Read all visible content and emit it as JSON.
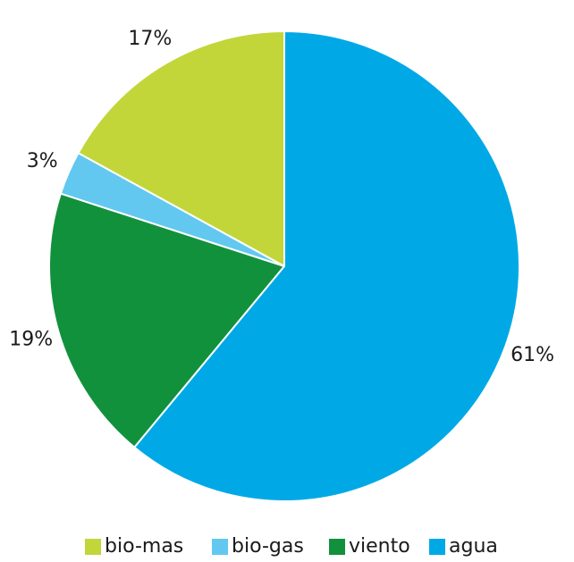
{
  "chart_data": {
    "type": "pie",
    "categories": [
      "bio-mas",
      "bio-gas",
      "viento",
      "agua"
    ],
    "values": [
      17,
      3,
      19,
      61
    ],
    "value_labels": [
      "17%",
      "3%",
      "19%",
      "61%"
    ],
    "colors": [
      "#c2d63a",
      "#62c8f0",
      "#12913d",
      "#00a9e6"
    ],
    "legend": "bottom"
  }
}
